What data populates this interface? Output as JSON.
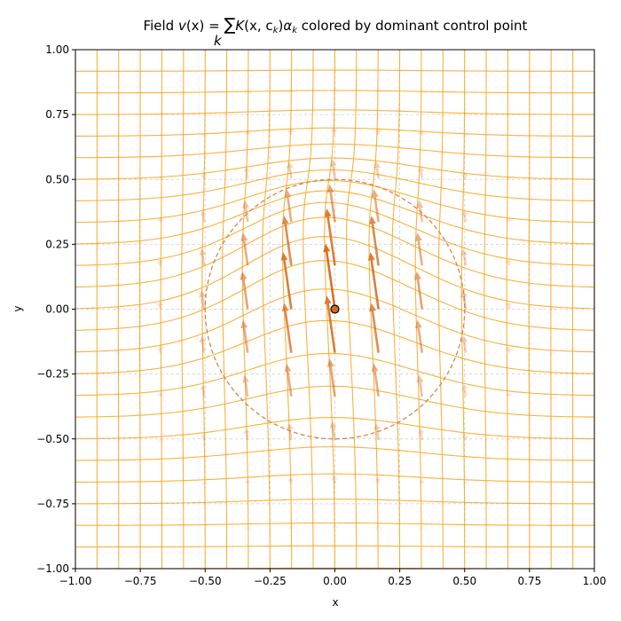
{
  "chart_data": {
    "type": "vector-field",
    "title": "Field v(x) = ∑ K(x, c_k)α_k colored by dominant control point",
    "title_parts": {
      "field": "Field ",
      "v": "v",
      "x_arg": "(x) = ",
      "sum": "∑",
      "sum_index": "k",
      "K": "K",
      "K_args": "(x, c",
      "K_sub": "k",
      "close": ")",
      "alpha": "α",
      "alpha_sub": "k",
      "rest": " colored by dominant control point"
    },
    "xlabel": "x",
    "ylabel": "y",
    "xlim": [
      -1.0,
      1.0
    ],
    "ylim": [
      -1.0,
      1.0
    ],
    "xticks": [
      "−1.00",
      "−0.75",
      "−0.50",
      "−0.25",
      "0.00",
      "0.25",
      "0.50",
      "0.75",
      "1.00"
    ],
    "yticks": [
      "−1.00",
      "−0.75",
      "−0.50",
      "−0.25",
      "0.00",
      "0.25",
      "0.50",
      "0.75",
      "1.00"
    ],
    "grid": true,
    "control_point": {
      "x": 0.0,
      "y": 0.0,
      "alpha": [
        -0.04,
        0.28
      ],
      "kernel_sigma": 0.32
    },
    "influence_circle": {
      "center": [
        0.0,
        0.0
      ],
      "radius": 0.5
    },
    "arrow_grid": {
      "min": -0.84,
      "max": 0.84,
      "step": 0.168
    },
    "deformed_grid": {
      "lines": 25,
      "samples": 90,
      "displacement_scale": 1.0
    },
    "colors": {
      "grid_line": "#f7a21f",
      "arrow": "#d4691a",
      "circle": "#d08040",
      "control_point_fill": "#d2691e",
      "gridline_minor": "#cccccc"
    }
  }
}
